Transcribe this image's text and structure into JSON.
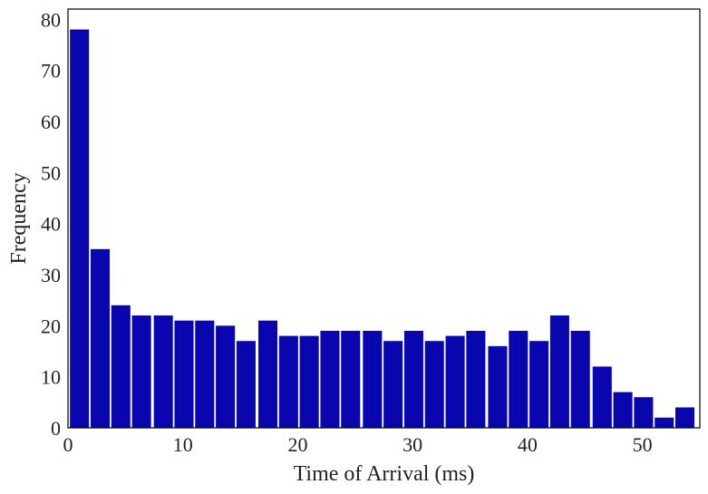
{
  "chart_data": {
    "type": "bar",
    "title": "",
    "xlabel": "Time of Arrival (ms)",
    "ylabel": "Frequency",
    "xlim": [
      0,
      55
    ],
    "ylim": [
      0,
      82
    ],
    "xticks": [
      0,
      10,
      20,
      30,
      40,
      50
    ],
    "yticks": [
      0,
      10,
      20,
      30,
      40,
      50,
      60,
      70,
      80
    ],
    "bin_width": 1.818,
    "bin_centers": [
      1.0,
      2.8,
      4.6,
      6.4,
      8.3,
      10.1,
      11.9,
      13.7,
      15.5,
      17.4,
      19.2,
      21.0,
      22.8,
      24.6,
      26.5,
      28.3,
      30.1,
      31.9,
      33.7,
      35.5,
      37.4,
      39.2,
      41.0,
      42.8,
      44.6,
      46.5,
      48.3,
      50.1,
      51.9,
      53.7
    ],
    "values": [
      78,
      35,
      24,
      22,
      22,
      21,
      21,
      20,
      17,
      21,
      18,
      18,
      19,
      19,
      19,
      17,
      19,
      17,
      18,
      19,
      16,
      19,
      17,
      22,
      19,
      12,
      7,
      6,
      2,
      4
    ],
    "bar_color": "#0a06ad",
    "grid": false
  }
}
